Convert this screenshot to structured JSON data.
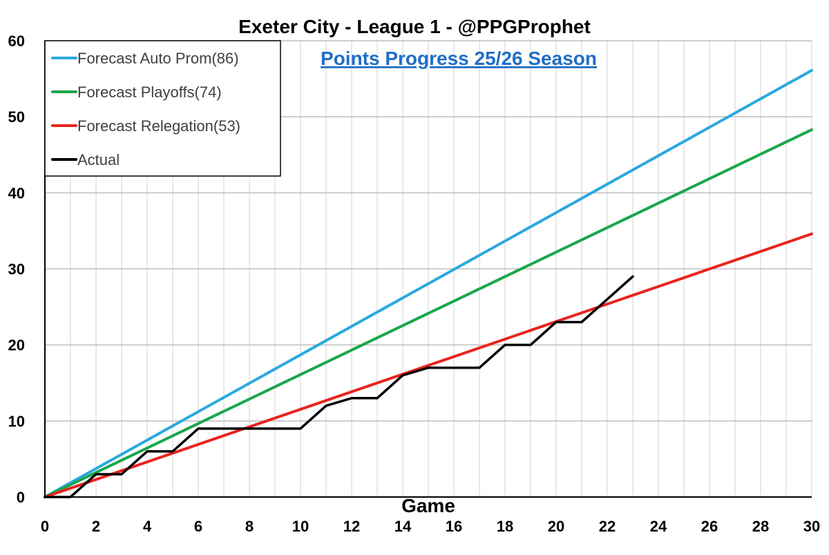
{
  "chart_data": {
    "type": "line",
    "title": "Exeter City - League 1 - @PPGProphet",
    "subtitle": "Points Progress 25/26 Season",
    "xlabel": "Game",
    "ylabel": "",
    "xlim": [
      0,
      30
    ],
    "ylim": [
      0,
      60
    ],
    "x_ticks": [
      0,
      2,
      4,
      6,
      8,
      10,
      12,
      14,
      16,
      18,
      20,
      22,
      24,
      26,
      28,
      30
    ],
    "y_ticks": [
      0,
      10,
      20,
      30,
      40,
      50,
      60
    ],
    "grid": true,
    "legend_position": "top-left",
    "series": [
      {
        "name": "Forecast Auto Prom(86)",
        "color": "#2aa8e0",
        "x": [
          0,
          30
        ],
        "y": [
          0,
          56.1
        ]
      },
      {
        "name": "Forecast Playoffs(74)",
        "color": "#1aa64a",
        "x": [
          0,
          30
        ],
        "y": [
          0,
          48.3
        ]
      },
      {
        "name": "Forecast Relegation(53)",
        "color": "#e8231f",
        "x": [
          0,
          30
        ],
        "y": [
          0,
          34.6
        ]
      },
      {
        "name": "Actual",
        "color": "#000000",
        "x": [
          0,
          1,
          2,
          3,
          4,
          5,
          6,
          7,
          8,
          9,
          10,
          11,
          12,
          13,
          14,
          15,
          16,
          17,
          18,
          19,
          20,
          21,
          22,
          23
        ],
        "y": [
          0,
          0,
          3,
          3,
          6,
          6,
          9,
          9,
          9,
          9,
          9,
          12,
          13,
          13,
          16,
          17,
          17,
          17,
          20,
          20,
          23,
          23,
          26,
          29
        ]
      }
    ]
  }
}
